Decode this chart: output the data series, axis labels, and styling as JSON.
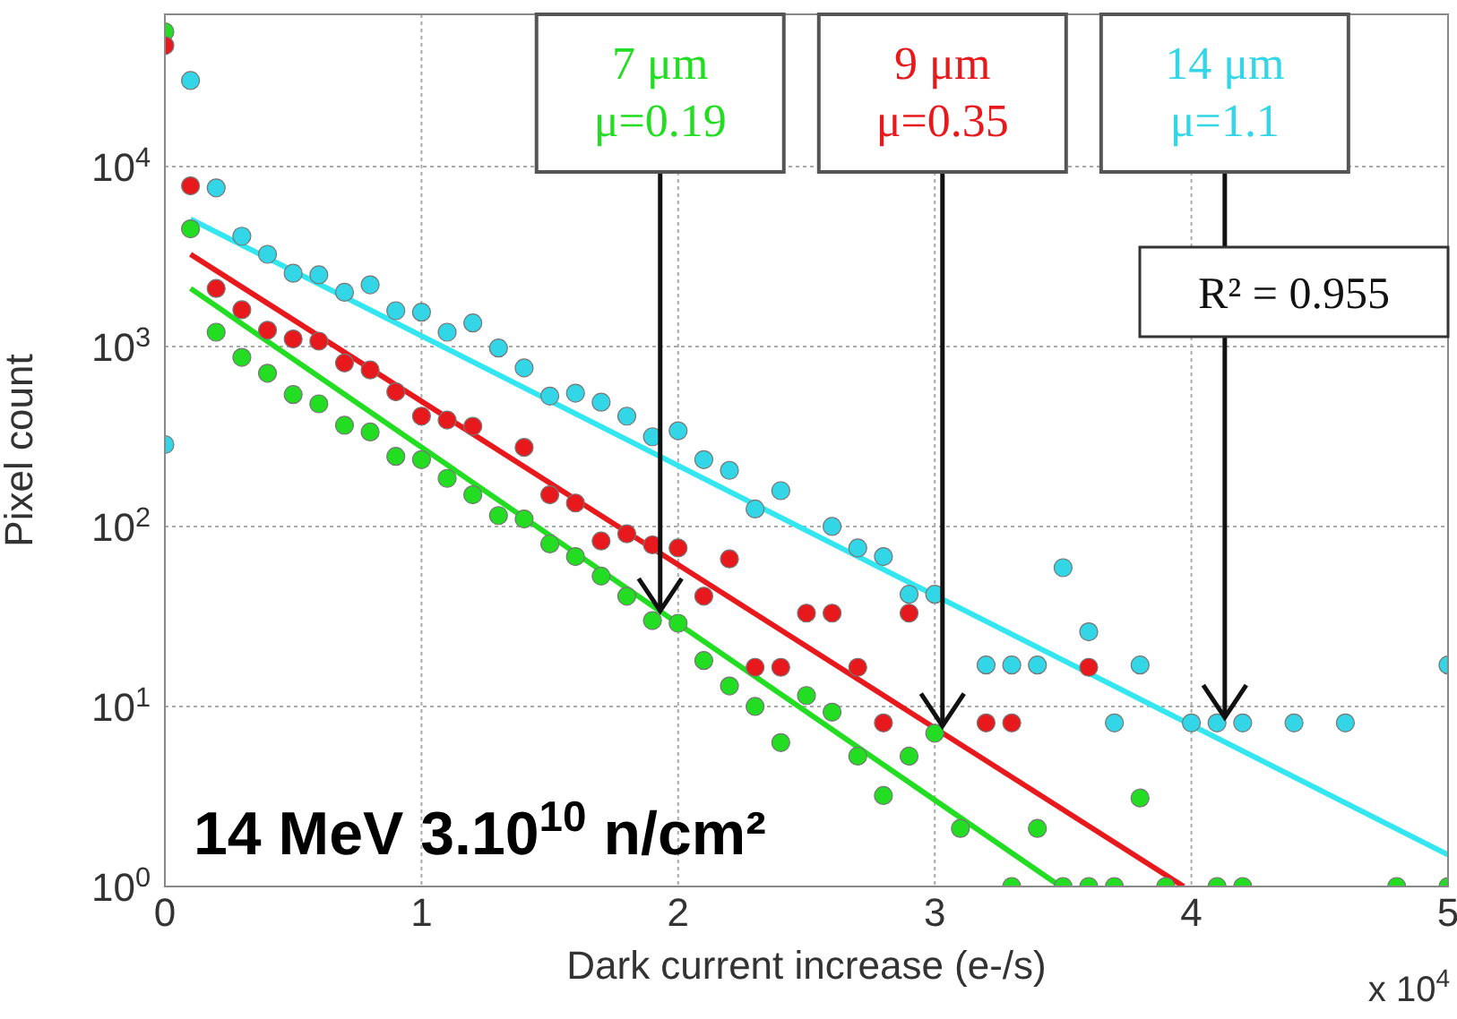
{
  "chart_data": {
    "type": "scatter",
    "xlabel": "Dark current increase (e-/s)",
    "ylabel": "Pixel count",
    "log": "y",
    "grid": true,
    "xlim": [
      0,
      5
    ],
    "xticks": [
      0,
      1,
      2,
      3,
      4,
      5
    ],
    "ylim": [
      1,
      70000
    ],
    "yticks": [
      {
        "value": 1,
        "label": "10$^{0}$"
      },
      {
        "value": 10,
        "label": "10$^{1}$"
      },
      {
        "value": 100,
        "label": "10$^{2}$"
      },
      {
        "value": 1000,
        "label": "10$^{3}$"
      },
      {
        "value": 10000,
        "label": "10$^{4}$"
      }
    ],
    "series": [
      {
        "marker": "circle",
        "color": "#22dd22",
        "x": [
          0,
          0.1,
          0.2,
          0.3,
          0.4,
          0.5,
          0.6,
          0.7,
          0.8,
          0.9,
          1.0,
          1.1,
          1.2,
          1.3,
          1.4,
          1.5,
          1.6,
          1.7,
          1.8,
          1.9,
          2.0,
          2.1,
          2.2,
          2.3,
          2.4,
          2.5,
          2.6,
          2.7,
          2.8,
          2.9,
          3.0,
          3.1,
          3.3,
          3.4,
          3.5,
          3.6,
          3.7,
          3.8,
          3.9,
          4.1,
          4.2,
          4.8,
          5.0
        ],
        "values": [
          56000,
          4500,
          1200,
          870,
          710,
          540,
          480,
          365,
          335,
          245,
          235,
          185,
          150,
          115,
          110,
          80,
          68,
          53,
          41,
          30,
          29,
          18,
          13,
          10,
          6.3,
          11.5,
          9.3,
          5.3,
          3.2,
          5.3,
          7.1,
          2.1,
          1,
          2.1,
          1,
          1,
          1,
          3.1,
          1,
          1,
          1,
          1,
          1
        ]
      },
      {
        "marker": "circle",
        "color": "#e8191c",
        "x": [
          0,
          0.1,
          0.2,
          0.3,
          0.4,
          0.5,
          0.6,
          0.7,
          0.8,
          0.9,
          1.0,
          1.1,
          1.2,
          1.4,
          1.5,
          1.6,
          1.7,
          1.8,
          1.9,
          2.0,
          2.1,
          2.2,
          2.3,
          2.4,
          2.5,
          2.6,
          2.7,
          2.8,
          2.9,
          3.2,
          3.3,
          3.6
        ],
        "values": [
          47000,
          7800,
          2100,
          1600,
          1230,
          1100,
          1070,
          810,
          740,
          560,
          410,
          390,
          360,
          275,
          150,
          135,
          83,
          91,
          79,
          76,
          41,
          66,
          16.5,
          16.5,
          33,
          33,
          16.5,
          8.1,
          33,
          8.1,
          8.1,
          16.5
        ]
      },
      {
        "marker": "circle",
        "color": "#33d6e6",
        "x": [
          0,
          0.1,
          0.2,
          0.3,
          0.4,
          0.5,
          0.6,
          0.7,
          0.8,
          0.9,
          1.0,
          1.1,
          1.2,
          1.3,
          1.4,
          1.5,
          1.6,
          1.7,
          1.8,
          1.9,
          2.0,
          2.1,
          2.2,
          2.3,
          2.4,
          2.6,
          2.7,
          2.8,
          2.9,
          3.0,
          3.2,
          3.3,
          3.4,
          3.5,
          3.6,
          3.7,
          3.8,
          4.0,
          4.1,
          4.2,
          4.4,
          4.6,
          5.0
        ],
        "values": [
          285,
          30000,
          7600,
          4100,
          3250,
          2550,
          2500,
          2000,
          2200,
          1580,
          1550,
          1200,
          1350,
          980,
          760,
          530,
          550,
          490,
          410,
          315,
          340,
          235,
          205,
          125,
          158,
          100,
          76,
          68,
          42,
          42,
          17,
          17,
          17,
          59,
          26,
          8.1,
          17,
          8.1,
          8.1,
          8.1,
          8.1,
          8.1,
          17
        ]
      },
      {
        "type": "line",
        "color": "#22dd22",
        "x": [
          0.1,
          3.49
        ],
        "values": [
          2100,
          1
        ]
      },
      {
        "type": "line",
        "color": "#e8191c",
        "x": [
          0.1,
          3.97
        ],
        "values": [
          3250,
          1
        ]
      },
      {
        "type": "line",
        "color": "#33e6f0",
        "x": [
          0.1,
          5
        ],
        "values": [
          5100,
          1.5
        ]
      }
    ],
    "annotations": [
      {
        "text": "7 μm\nμ=0.19",
        "x": 1.93,
        "y": 34
      },
      {
        "text": "9 μm\nμ=0.35",
        "x": 3.03,
        "y": 7.8
      },
      {
        "text": "14 μm\nμ=1.1",
        "x": 4.13,
        "y": 8.7
      },
      "R² = 0.955",
      "14 MeV 3.10$^{10}$ n/cm²",
      "x 10$^{4}$"
    ]
  }
}
